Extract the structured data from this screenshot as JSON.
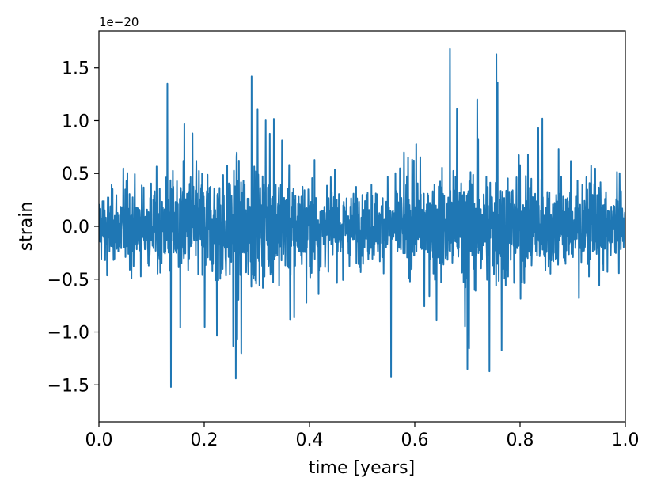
{
  "chart_data": {
    "type": "line",
    "title": "",
    "xlabel": "time [years]",
    "ylabel": "strain",
    "y_offset_label": "1e−20",
    "y_scale_factor": 1e-20,
    "xlim": [
      0.0,
      1.0
    ],
    "ylim": [
      -1.85,
      1.85
    ],
    "xticks": [
      0.0,
      0.2,
      0.4,
      0.6,
      0.8,
      1.0
    ],
    "xtick_labels": [
      "0.0",
      "0.2",
      "0.4",
      "0.6",
      "0.8",
      "1.0"
    ],
    "yticks": [
      -1.5,
      -1.0,
      -0.5,
      0.0,
      0.5,
      1.0,
      1.5
    ],
    "ytick_labels": [
      "−1.5",
      "−1.0",
      "−0.5",
      "0.0",
      "0.5",
      "1.0",
      "1.5"
    ],
    "grid": false,
    "series": [
      {
        "color": "#1f77b4",
        "description_of_data": "dense noisy strain time series, amplitude modulated with maxima near 0.25 and 0.75 years",
        "envelope_peaks": [
          {
            "x": 0.137,
            "y": -1.52
          },
          {
            "x": 0.13,
            "y": 1.35
          },
          {
            "x": 0.26,
            "y": -1.44
          },
          {
            "x": 0.29,
            "y": 1.42
          },
          {
            "x": 0.555,
            "y": -1.43
          },
          {
            "x": 0.667,
            "y": 1.68
          },
          {
            "x": 0.755,
            "y": 1.63
          },
          {
            "x": 0.7,
            "y": -1.35
          }
        ]
      }
    ]
  }
}
